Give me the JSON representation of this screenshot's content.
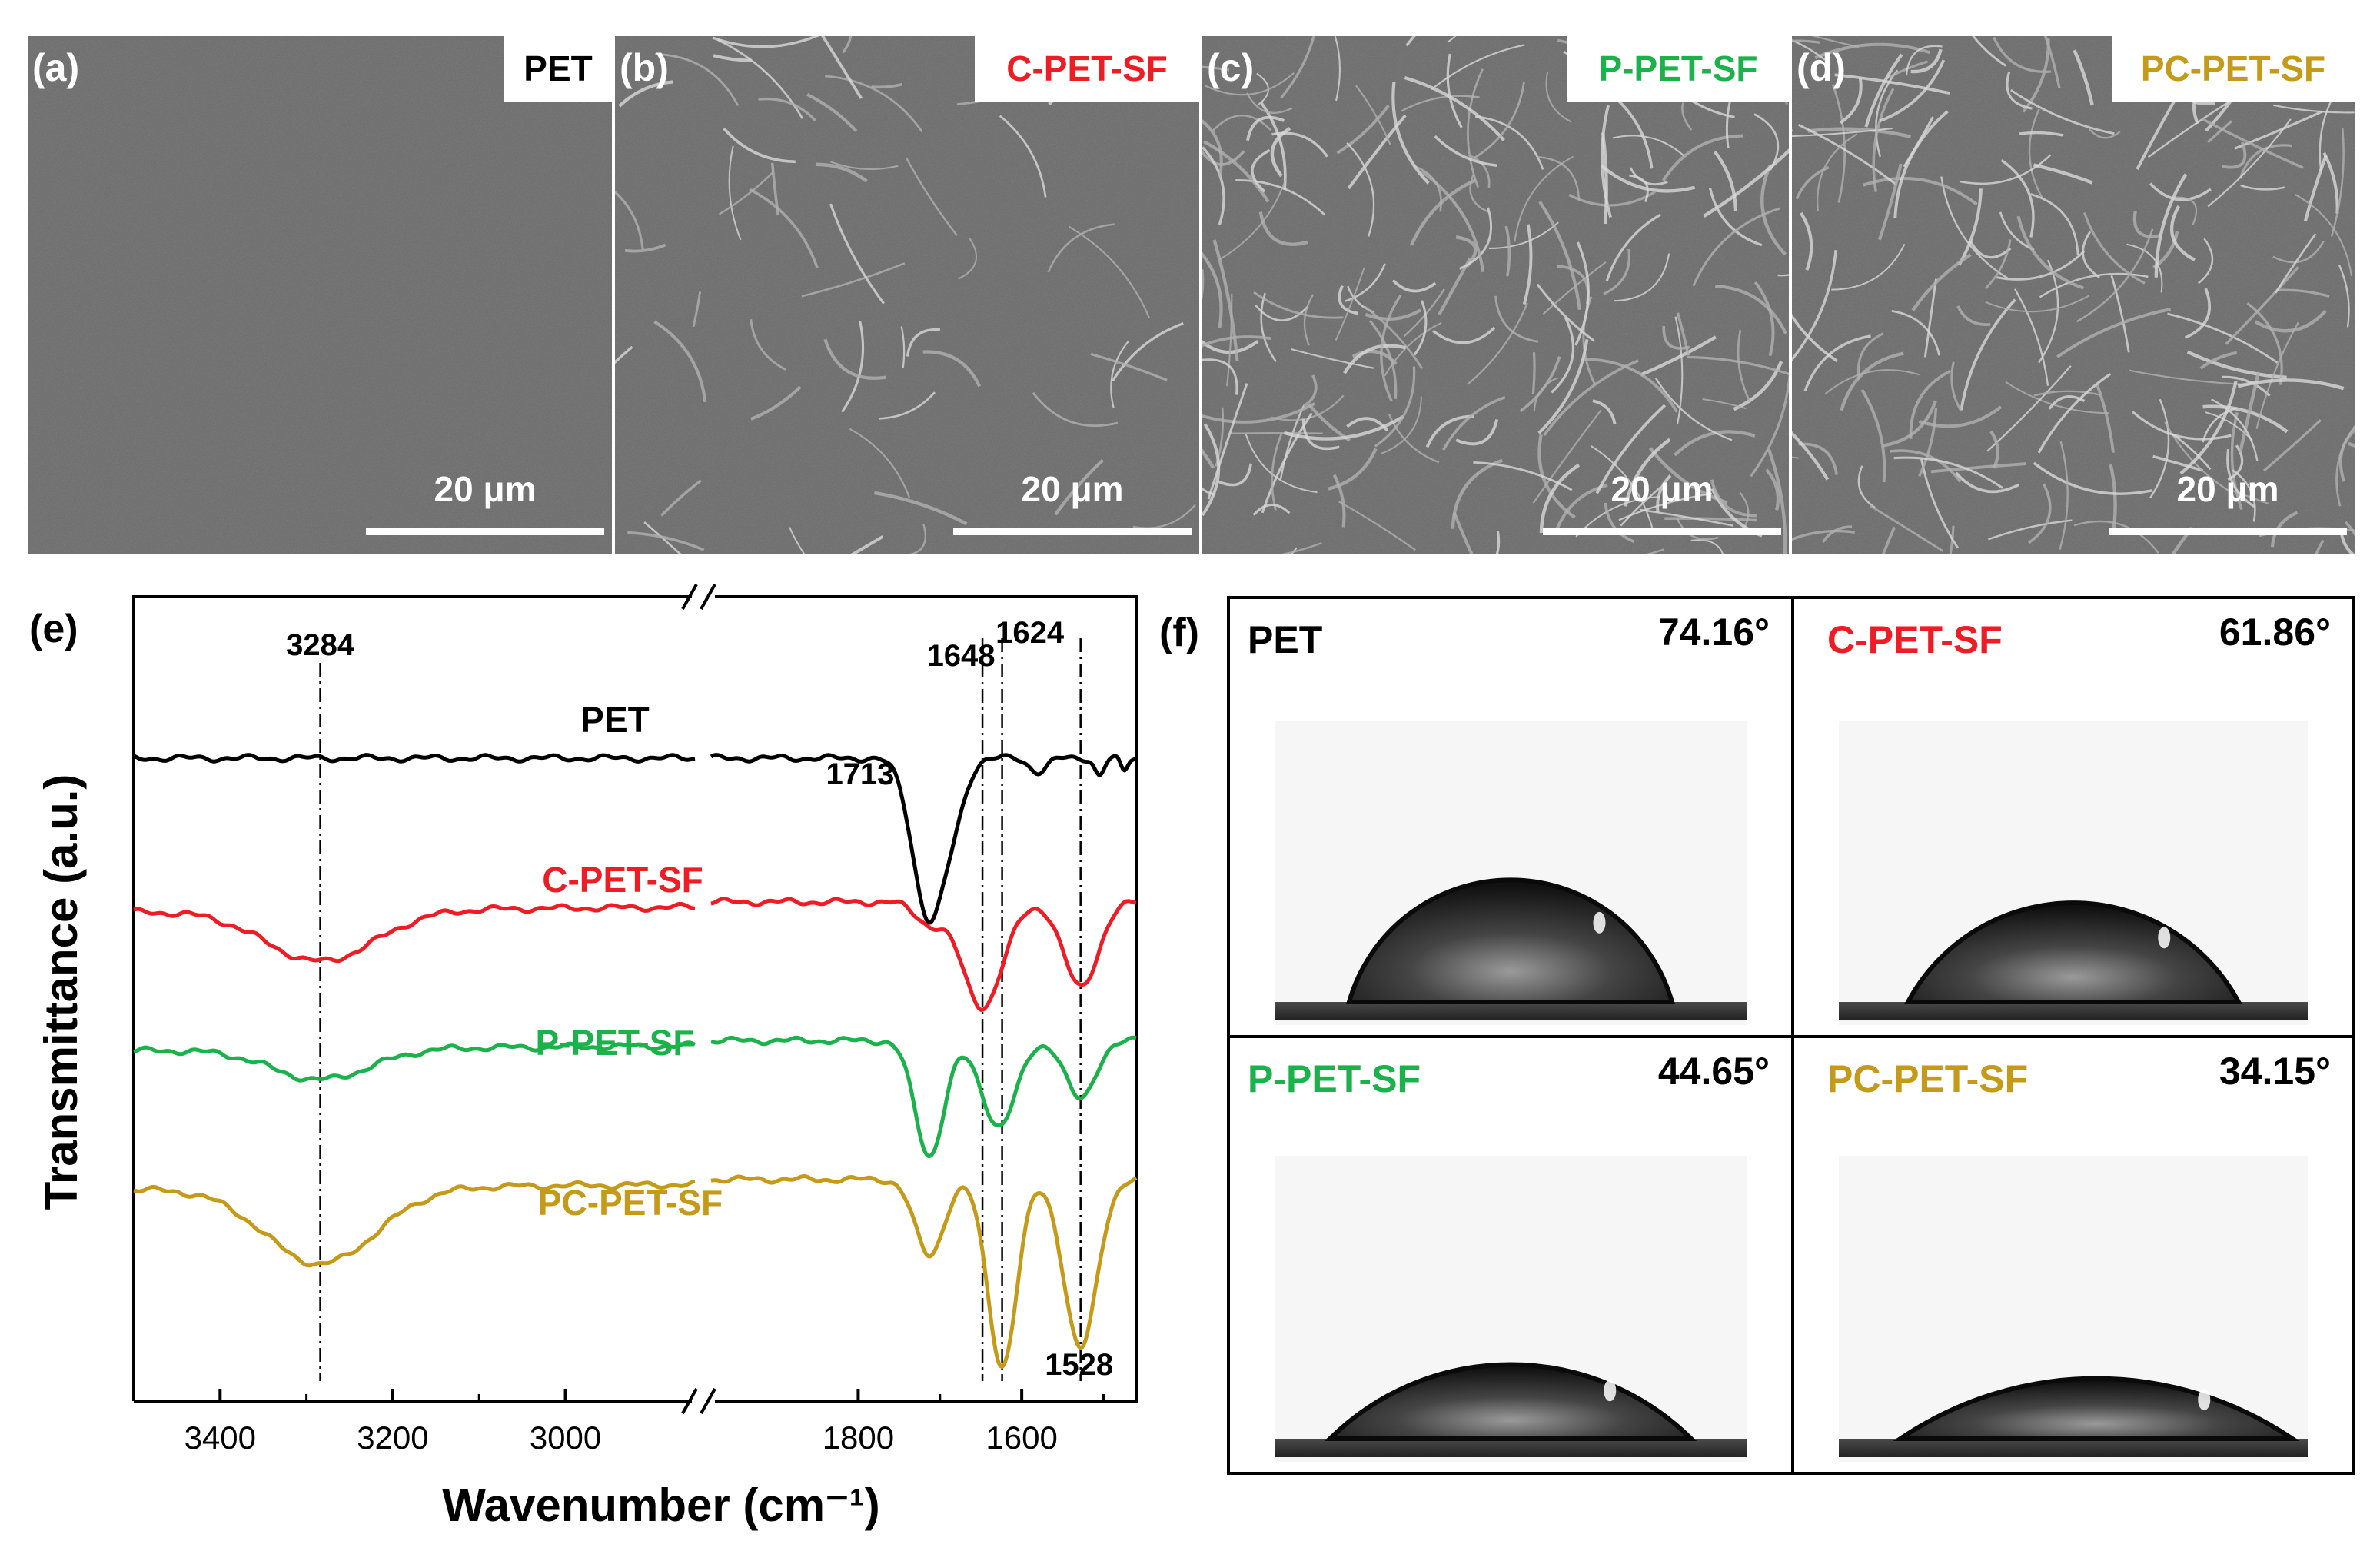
{
  "sem": {
    "panels": [
      {
        "letter": "(a)",
        "sample": "PET",
        "scale": "20 μm",
        "color": "#000000",
        "fiber": 0
      },
      {
        "letter": "(b)",
        "sample": "C-PET-SF",
        "scale": "20 μm",
        "color": "#ee1c25",
        "fiber": 1
      },
      {
        "letter": "(c)",
        "sample": "P-PET-SF",
        "scale": "20 μm",
        "color": "#1bb14b",
        "fiber": 2
      },
      {
        "letter": "(d)",
        "sample": "PC-PET-SF",
        "scale": "20 μm",
        "color": "#c49a18",
        "fiber": 3
      }
    ]
  },
  "ftir": {
    "panel_label": "(e)",
    "peaks": [
      "3284",
      "1648",
      "1624",
      "1713",
      "1528"
    ],
    "ticks": [
      "3400",
      "3200",
      "3000",
      "1800",
      "1600"
    ],
    "series_labels": [
      "PET",
      "C-PET-SF",
      "P-PET-SF",
      "PC-PET-SF"
    ]
  },
  "chart_data": {
    "type": "line",
    "xlabel": "Wavenumber (cm⁻¹)",
    "ylabel": "Transmittance (a.u.)",
    "x_ticks": [
      3400,
      3200,
      3000,
      1800,
      1600
    ],
    "x_break": [
      2850,
      1980
    ],
    "xlim": [
      3500,
      1460
    ],
    "reversed_x": true,
    "y_ticks": "none (arbitrary units)",
    "peak_markers": [
      3284,
      1648,
      1624,
      1528
    ],
    "peak_labels": [
      3284,
      1648,
      1624,
      1713,
      1528
    ],
    "series": [
      {
        "name": "PET",
        "color": "#000000",
        "offset": 3.8,
        "dips": [
          [
            1713,
            0.95,
            28
          ],
          [
            1680,
            0.2,
            20
          ],
          [
            1580,
            0.08,
            15
          ],
          [
            1505,
            0.1,
            8
          ],
          [
            1475,
            0.08,
            6
          ]
        ]
      },
      {
        "name": "C-PET-SF",
        "color": "#ee1c25",
        "offset": 2.92,
        "dips": [
          [
            3284,
            0.3,
            90
          ],
          [
            1648,
            0.62,
            35
          ],
          [
            1528,
            0.5,
            30
          ],
          [
            1713,
            0.12,
            25
          ]
        ]
      },
      {
        "name": "P-PET-SF",
        "color": "#1bb14b",
        "offset": 2.1,
        "dips": [
          [
            3284,
            0.18,
            80
          ],
          [
            1713,
            0.68,
            25
          ],
          [
            1628,
            0.5,
            30
          ],
          [
            1528,
            0.35,
            25
          ]
        ]
      },
      {
        "name": "PC-PET-SF",
        "color": "#c49a18",
        "offset": 1.28,
        "dips": [
          [
            3284,
            0.45,
            90
          ],
          [
            1713,
            0.45,
            25
          ],
          [
            1624,
            1.1,
            25
          ],
          [
            1528,
            1.0,
            28
          ]
        ]
      }
    ]
  },
  "contact": {
    "panel_label": "(f)",
    "cells": [
      {
        "name": "PET",
        "angle": "74.16°",
        "color": "#000000",
        "value": 74.16
      },
      {
        "name": "C-PET-SF",
        "angle": "61.86°",
        "color": "#ee1c25",
        "value": 61.86
      },
      {
        "name": "P-PET-SF",
        "angle": "44.65°",
        "color": "#1bb14b",
        "value": 44.65
      },
      {
        "name": "PC-PET-SF",
        "angle": "34.15°",
        "color": "#c49a18",
        "value": 34.15
      }
    ]
  }
}
